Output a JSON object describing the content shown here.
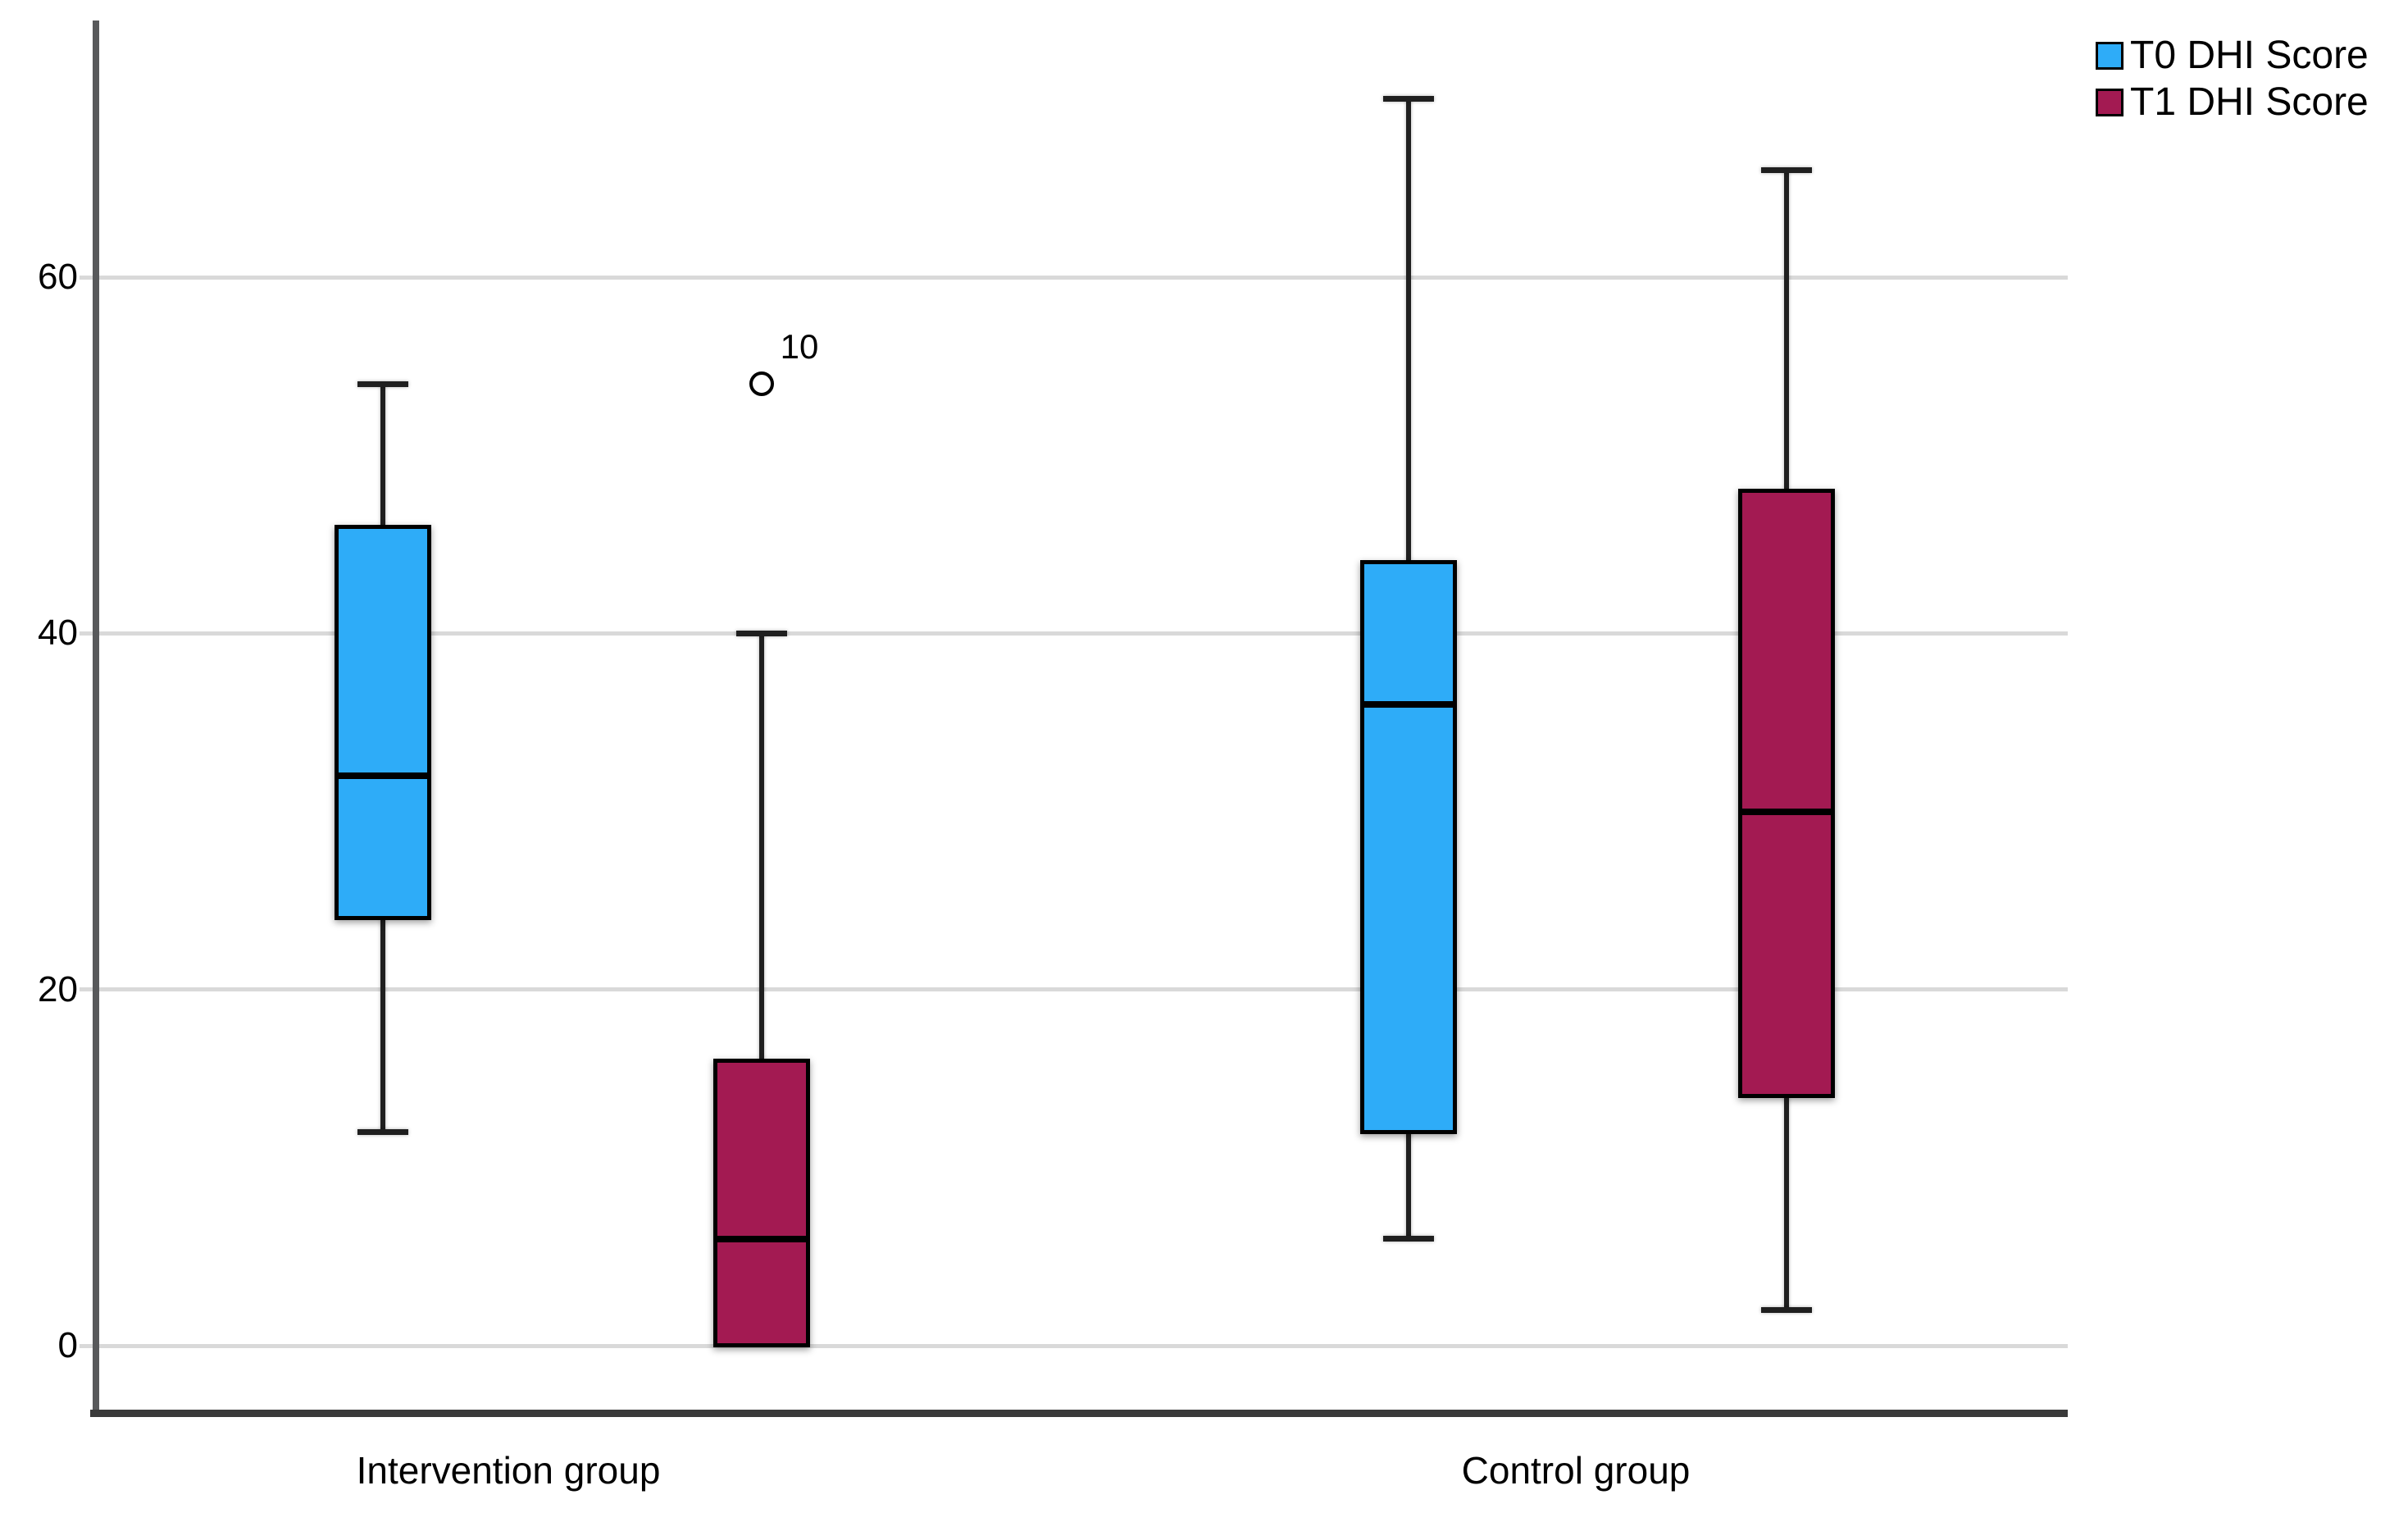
{
  "chart_data": {
    "type": "boxplot",
    "title": "",
    "categories": [
      "Intervention group",
      "Control group"
    ],
    "series": [
      {
        "name": "T0 DHI Score",
        "color": "#2eacf8",
        "boxes": [
          {
            "category": "Intervention group",
            "whisker_low": 12,
            "q1": 24,
            "median": 32,
            "q3": 46,
            "whisker_high": 54,
            "outliers": []
          },
          {
            "category": "Control group",
            "whisker_low": 6,
            "q1": 12,
            "median": 36,
            "q3": 44,
            "whisker_high": 70,
            "outliers": []
          }
        ]
      },
      {
        "name": "T1 DHI Score",
        "color": "#a31a52",
        "boxes": [
          {
            "category": "Intervention group",
            "whisker_low": 0,
            "q1": 0,
            "median": 6,
            "q3": 16,
            "whisker_high": 40,
            "outliers": [
              {
                "value": 54,
                "label": "10"
              }
            ]
          },
          {
            "category": "Control group",
            "whisker_low": 2,
            "q1": 14,
            "median": 30,
            "q3": 48,
            "whisker_high": 66,
            "outliers": []
          }
        ]
      }
    ],
    "y_axis": {
      "ticks": [
        0,
        20,
        40,
        60
      ],
      "range": [
        -4,
        74
      ]
    },
    "xlabel": "",
    "ylabel": "",
    "grid": true,
    "legend_position": "top-right"
  },
  "colors": {
    "t0_fill": "#2eacf8",
    "t1_fill": "#a31a52",
    "grid": "#d9d9d9",
    "y_axis_line": "#58595b",
    "x_axis_line": "#3a3a3a",
    "box_border": "#000000"
  }
}
